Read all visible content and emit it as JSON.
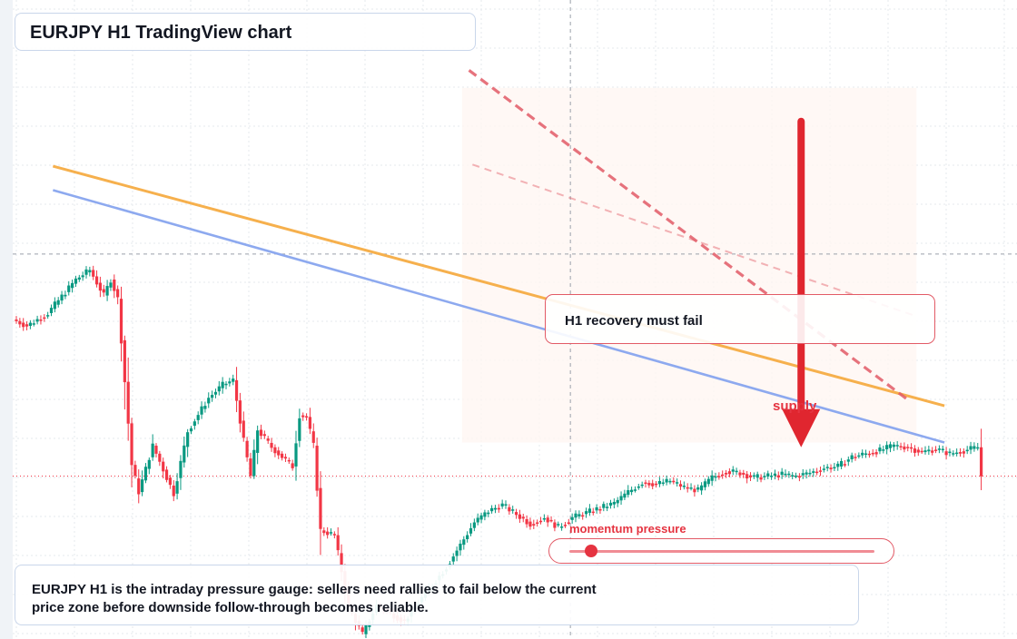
{
  "title": "EURJPY H1 TradingView chart",
  "callout": {
    "text": "H1 recovery must fail"
  },
  "supply_label": "supply",
  "momentum": {
    "label": "momentum pressure",
    "level": 0.07
  },
  "note": {
    "text": "EURJPY H1 is the intraday pressure gauge: sellers need rallies to fail below the current price zone before downside follow-through becomes reliable."
  },
  "colors": {
    "up": "#089981",
    "down": "#f23645",
    "accent": "#e53340",
    "trendline_orange": "#f6b04d",
    "trendline_blue": "#8da9ef",
    "resistance_dashed": "#e25a66",
    "zone_fill": "#fff6f1"
  },
  "chart_data": {
    "type": "candlestick",
    "symbol": "EURJPY",
    "timeframe": "H1",
    "y_range": [
      -100,
      300
    ],
    "anchors": [
      [
        0,
        100
      ],
      [
        4,
        96
      ],
      [
        10,
        104
      ],
      [
        18,
        125
      ],
      [
        22,
        131
      ],
      [
        26,
        115
      ],
      [
        28,
        125
      ],
      [
        30,
        113
      ],
      [
        34,
        9
      ],
      [
        36,
        -8
      ],
      [
        40,
        21
      ],
      [
        46,
        -9
      ],
      [
        50,
        30
      ],
      [
        56,
        51
      ],
      [
        60,
        59
      ],
      [
        63,
        62
      ],
      [
        66,
        24
      ],
      [
        68,
        2
      ],
      [
        70,
        31
      ],
      [
        74,
        20
      ],
      [
        78,
        12
      ],
      [
        80,
        8
      ],
      [
        82,
        40
      ],
      [
        84,
        39
      ],
      [
        86,
        21
      ],
      [
        88,
        -32
      ],
      [
        92,
        -35
      ],
      [
        96,
        -80
      ],
      [
        100,
        -97
      ],
      [
        104,
        -79
      ],
      [
        108,
        -84
      ],
      [
        112,
        -89
      ],
      [
        116,
        -77
      ],
      [
        120,
        -66
      ],
      [
        124,
        -55
      ],
      [
        128,
        -41
      ],
      [
        132,
        -27
      ],
      [
        136,
        -20
      ],
      [
        140,
        -16
      ],
      [
        144,
        -22
      ],
      [
        148,
        -28
      ],
      [
        152,
        -24
      ],
      [
        156,
        -30
      ],
      [
        160,
        -24
      ],
      [
        164,
        -21
      ],
      [
        168,
        -18
      ],
      [
        172,
        -15
      ],
      [
        176,
        -8
      ],
      [
        180,
        -2
      ],
      [
        184,
        -3
      ],
      [
        188,
        -1
      ],
      [
        192,
        -5
      ],
      [
        196,
        -7
      ],
      [
        200,
        1
      ],
      [
        204,
        5
      ],
      [
        208,
        4
      ],
      [
        212,
        1
      ],
      [
        216,
        2
      ],
      [
        220,
        3
      ],
      [
        224,
        2
      ],
      [
        228,
        4
      ],
      [
        232,
        7
      ],
      [
        236,
        8
      ],
      [
        240,
        14
      ],
      [
        244,
        16
      ],
      [
        248,
        18
      ],
      [
        252,
        21
      ],
      [
        256,
        20
      ],
      [
        260,
        17
      ],
      [
        264,
        19
      ],
      [
        268,
        16
      ],
      [
        272,
        18
      ],
      [
        276,
        20
      ],
      [
        277,
        2
      ]
    ],
    "trendlines": [
      {
        "color": "orange",
        "from": [
          11,
          196
        ],
        "to": [
          266,
          46
        ]
      },
      {
        "color": "blue",
        "from": [
          11,
          181
        ],
        "to": [
          266,
          23
        ]
      },
      {
        "color": "red-dashed",
        "from": [
          130,
          256
        ],
        "to": [
          256,
          49
        ]
      },
      {
        "color": "red-dashed-light",
        "from": [
          131,
          197
        ],
        "to": [
          258,
          102
        ]
      }
    ],
    "supply_zone": {
      "from": 128,
      "to": 258,
      "y_low": 23,
      "y_high": 245
    },
    "arrow": {
      "at": 225,
      "from_y": 224,
      "to_y": 20
    },
    "crosshair": {
      "x": 159,
      "y": 141
    },
    "last_price_y": 2
  }
}
